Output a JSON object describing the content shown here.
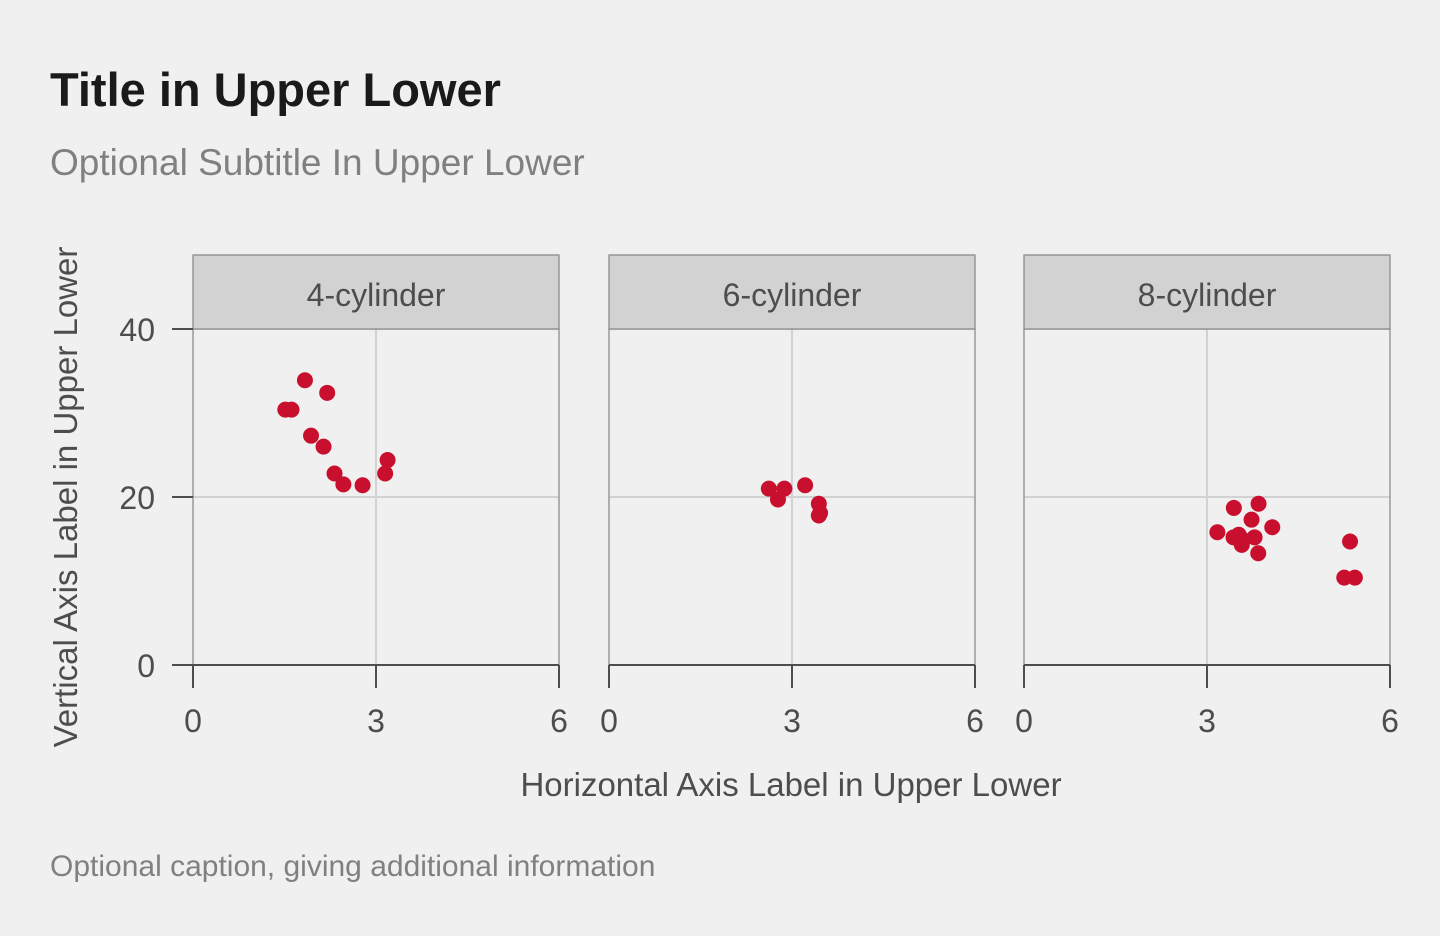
{
  "title": "Title in Upper Lower",
  "subtitle": "Optional Subtitle In Upper Lower",
  "caption": "Optional caption, giving additional information",
  "colors": {
    "background": "#f0f0f0",
    "point": "#c8102e",
    "strip": "#d2d2d2",
    "grid": "#d2d2d2",
    "axis": "#4d4d4d"
  },
  "chart_data": {
    "type": "scatter",
    "xlabel": "Horizontal Axis Label in Upper Lower",
    "ylabel": "Vertical Axis Label in Upper Lower",
    "xlim": [
      0,
      6
    ],
    "ylim": [
      0,
      40
    ],
    "xticks": [
      0,
      3,
      6
    ],
    "yticks": [
      0,
      20,
      40
    ],
    "grid": true,
    "facets": [
      {
        "label": "4-cylinder",
        "points": [
          [
            2.32,
            22.8
          ],
          [
            3.19,
            24.4
          ],
          [
            3.15,
            22.8
          ],
          [
            2.2,
            32.4
          ],
          [
            1.615,
            30.4
          ],
          [
            1.835,
            33.9
          ],
          [
            2.465,
            21.5
          ],
          [
            1.935,
            27.3
          ],
          [
            2.14,
            26.0
          ],
          [
            1.513,
            30.4
          ],
          [
            2.78,
            21.4
          ]
        ]
      },
      {
        "label": "6-cylinder",
        "points": [
          [
            2.62,
            21.0
          ],
          [
            2.875,
            21.0
          ],
          [
            3.215,
            21.4
          ],
          [
            3.46,
            18.1
          ],
          [
            3.44,
            19.2
          ],
          [
            3.44,
            17.8
          ],
          [
            2.77,
            19.7
          ]
        ]
      },
      {
        "label": "8-cylinder",
        "points": [
          [
            3.44,
            18.7
          ],
          [
            3.57,
            14.3
          ],
          [
            4.07,
            16.4
          ],
          [
            3.73,
            17.3
          ],
          [
            3.78,
            15.2
          ],
          [
            5.25,
            10.4
          ],
          [
            5.424,
            10.4
          ],
          [
            5.345,
            14.7
          ],
          [
            3.52,
            15.5
          ],
          [
            3.435,
            15.2
          ],
          [
            3.84,
            13.3
          ],
          [
            3.845,
            19.2
          ],
          [
            3.17,
            15.8
          ],
          [
            3.57,
            15.0
          ]
        ]
      }
    ]
  }
}
